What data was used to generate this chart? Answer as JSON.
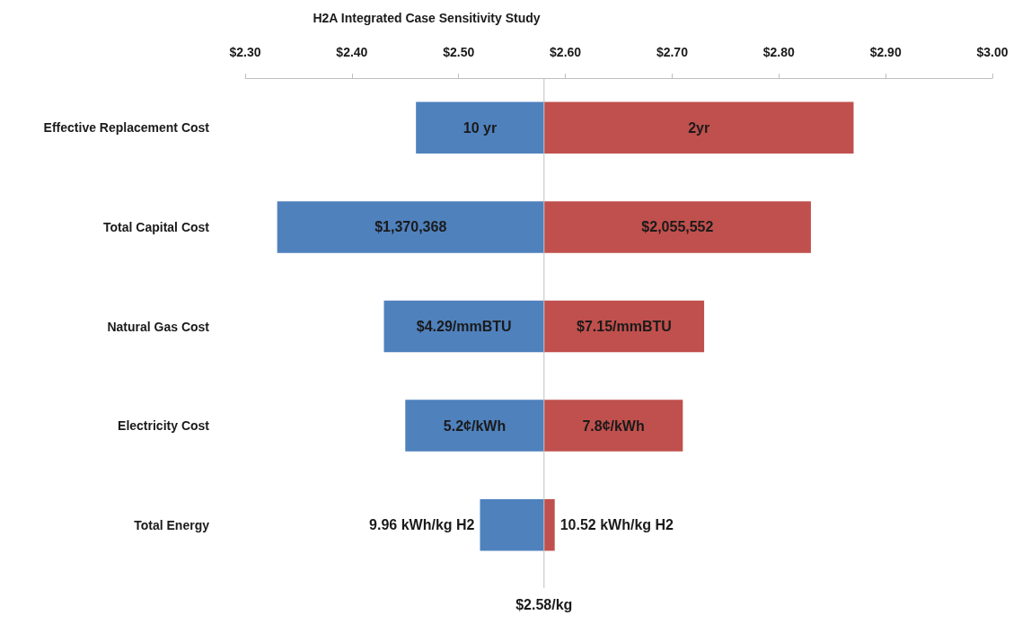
{
  "chart_data": {
    "type": "bar",
    "orientation": "horizontal",
    "title": "H2A Integrated Case Sensitivity Study",
    "categories": [
      "Effective Replacement Cost",
      "Total Capital Cost",
      "Natural Gas Cost",
      "Electricity Cost",
      "Total Energy"
    ],
    "series": [
      {
        "color": "#4f81bd",
        "base": [
          2.46,
          2.33,
          2.43,
          2.45,
          2.52
        ],
        "values": [
          0.12,
          0.25,
          0.15,
          0.13,
          0.06
        ]
      },
      {
        "color": "#c0504d",
        "base": [
          2.58,
          2.58,
          2.58,
          2.58,
          2.58
        ],
        "values": [
          0.29,
          0.25,
          0.15,
          0.13,
          0.01
        ]
      }
    ],
    "annotations": [
      "10 yr",
      "2yr",
      "$1,370,368",
      "$2,055,552",
      "$4.29/mmBTU",
      "$7.15/mmBTU",
      "5.2¢/kWh",
      "7.8¢/kWh",
      "9.96 kWh/kg H2",
      "10.52 kWh/kg H2"
    ],
    "xlim": [
      2.3,
      3.0
    ],
    "xticks": [
      {
        "value": 2.3,
        "label": "$2.30"
      },
      {
        "value": 2.4,
        "label": "$2.40"
      },
      {
        "value": 2.5,
        "label": "$2.50"
      },
      {
        "value": 2.6,
        "label": "$2.60"
      },
      {
        "value": 2.7,
        "label": "$2.70"
      },
      {
        "value": 2.8,
        "label": "$2.80"
      },
      {
        "value": 2.9,
        "label": "$2.90"
      },
      {
        "value": 3.0,
        "label": "$3.00"
      }
    ],
    "ref_lines": [
      {
        "axis": "x",
        "value": 2.58,
        "label": "$2.58/kg",
        "color": "#bfbfbf"
      }
    ],
    "grid": false
  }
}
